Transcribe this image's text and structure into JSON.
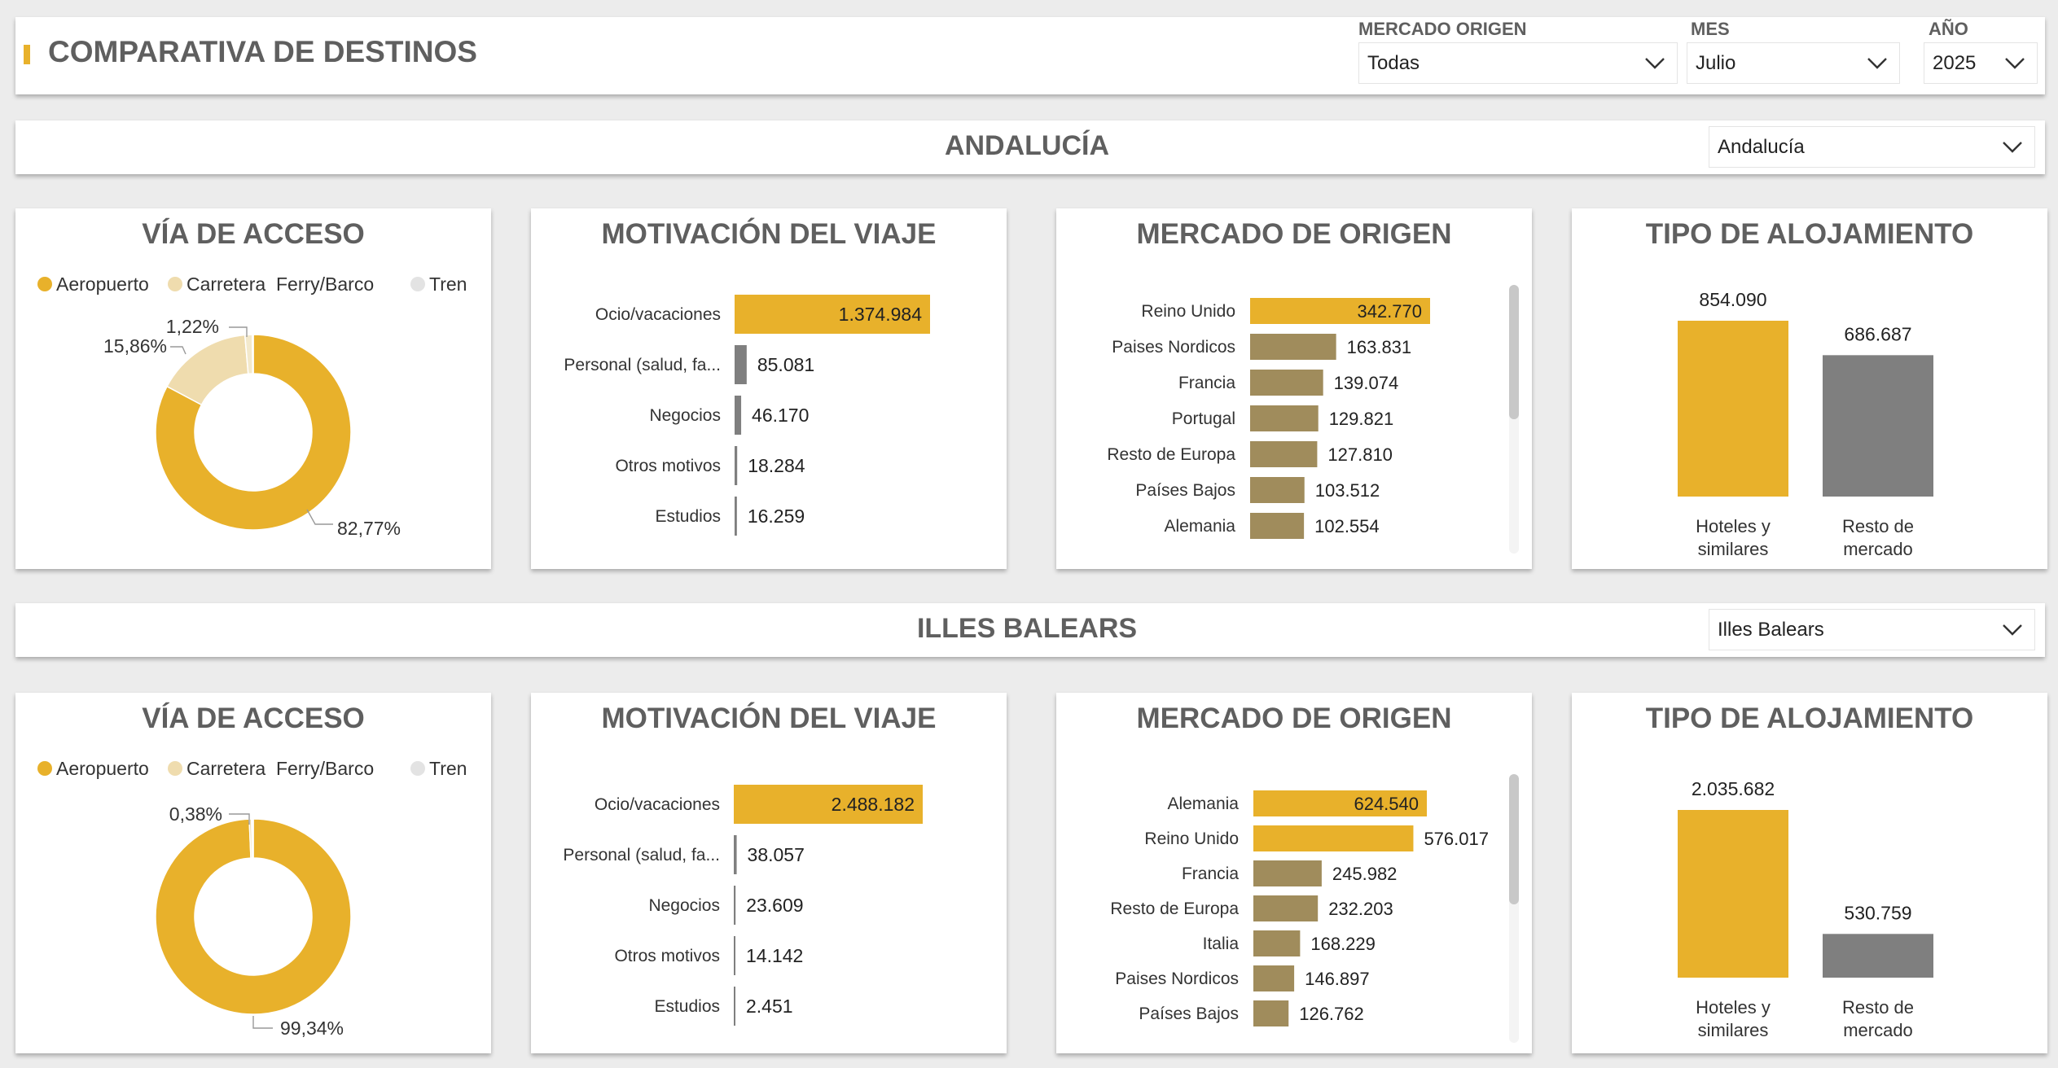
{
  "header": {
    "title": "COMPARATIVA DE DESTINOS",
    "filters": [
      {
        "label": "MERCADO ORIGEN",
        "value": "Todas"
      },
      {
        "label": "MES",
        "value": "Julio"
      },
      {
        "label": "AÑO",
        "value": "2025"
      }
    ]
  },
  "colors": {
    "accent": "#e8b12b",
    "light": "#efdcae",
    "gray": "#7f7f7f",
    "origin": "#a08c5c",
    "scrollbar": "#c8c8c8"
  },
  "sections": [
    {
      "region": "ANDALUCÍA",
      "selector": "Andalucía",
      "cards": {
        "acceso_title": "VÍA DE ACCESO",
        "motivacion_title": "MOTIVACIÓN DEL VIAJE",
        "mercado_title": "MERCADO DE ORIGEN",
        "alojamiento_title": "TIPO DE ALOJAMIENTO"
      }
    },
    {
      "region": "ILLES BALEARS",
      "selector": "Illes Balears",
      "cards": {
        "acceso_title": "VÍA DE ACCESO",
        "motivacion_title": "MOTIVACIÓN DEL VIAJE",
        "mercado_title": "MERCADO DE ORIGEN",
        "alojamiento_title": "TIPO DE ALOJAMIENTO"
      }
    }
  ],
  "chart_data": [
    {
      "type": "pie",
      "variant": "donut",
      "section": "ANDALUCÍA",
      "title": "VÍA DE ACCESO",
      "categories": [
        "Aeropuerto",
        "Carretera",
        "Ferry/Barco",
        "Tren"
      ],
      "values": [
        82.77,
        15.86,
        1.22,
        0.15
      ],
      "labels": [
        "82,77%",
        "15,86%",
        "1,22%",
        ""
      ],
      "legend": "top"
    },
    {
      "type": "bar",
      "orientation": "horizontal",
      "section": "ANDALUCÍA",
      "title": "MOTIVACIÓN DEL VIAJE",
      "categories": [
        "Ocio/vacaciones",
        "Personal (salud, fa...",
        "Negocios",
        "Otros motivos",
        "Estudios"
      ],
      "values": [
        1374984,
        85081,
        46170,
        18284,
        16259
      ],
      "labels": [
        "1.374.984",
        "85.081",
        "46.170",
        "18.284",
        "16.259"
      ]
    },
    {
      "type": "bar",
      "orientation": "horizontal",
      "section": "ANDALUCÍA",
      "title": "MERCADO DE ORIGEN",
      "categories": [
        "Reino Unido",
        "Paises Nordicos",
        "Francia",
        "Portugal",
        "Resto de Europa",
        "Países Bajos",
        "Alemania"
      ],
      "values": [
        342770,
        163831,
        139074,
        129821,
        127810,
        103512,
        102554
      ],
      "labels": [
        "342.770",
        "163.831",
        "139.074",
        "129.821",
        "127.810",
        "103.512",
        "102.554"
      ]
    },
    {
      "type": "bar",
      "orientation": "vertical",
      "section": "ANDALUCÍA",
      "title": "TIPO DE ALOJAMIENTO",
      "categories": [
        "Hoteles y similares",
        "Resto de mercado"
      ],
      "category_lines": [
        [
          "Hoteles y",
          "similares"
        ],
        [
          "Resto de",
          "mercado"
        ]
      ],
      "values": [
        854090,
        686687
      ],
      "labels": [
        "854.090",
        "686.687"
      ]
    },
    {
      "type": "pie",
      "variant": "donut",
      "section": "ILLES BALEARS",
      "title": "VÍA DE ACCESO",
      "categories": [
        "Aeropuerto",
        "Carretera",
        "Ferry/Barco",
        "Tren"
      ],
      "values": [
        99.34,
        0.38,
        0.2,
        0.08
      ],
      "labels": [
        "99,34%",
        "0,38%",
        "",
        ""
      ],
      "legend": "top"
    },
    {
      "type": "bar",
      "orientation": "horizontal",
      "section": "ILLES BALEARS",
      "title": "MOTIVACIÓN DEL VIAJE",
      "categories": [
        "Ocio/vacaciones",
        "Personal (salud, fa...",
        "Negocios",
        "Otros motivos",
        "Estudios"
      ],
      "values": [
        2488182,
        38057,
        23609,
        14142,
        2451
      ],
      "labels": [
        "2.488.182",
        "38.057",
        "23.609",
        "14.142",
        "2.451"
      ]
    },
    {
      "type": "bar",
      "orientation": "horizontal",
      "section": "ILLES BALEARS",
      "title": "MERCADO DE ORIGEN",
      "categories": [
        "Alemania",
        "Reino Unido",
        "Francia",
        "Resto de Europa",
        "Italia",
        "Paises Nordicos",
        "Países Bajos"
      ],
      "values": [
        624540,
        576017,
        245982,
        232203,
        168229,
        146897,
        126762
      ],
      "labels": [
        "624.540",
        "576.017",
        "245.982",
        "232.203",
        "168.229",
        "146.897",
        "126.762"
      ]
    },
    {
      "type": "bar",
      "orientation": "vertical",
      "section": "ILLES BALEARS",
      "title": "TIPO DE ALOJAMIENTO",
      "categories": [
        "Hoteles y similares",
        "Resto de mercado"
      ],
      "category_lines": [
        [
          "Hoteles y",
          "similares"
        ],
        [
          "Resto de",
          "mercado"
        ]
      ],
      "values": [
        2035682,
        530759
      ],
      "labels": [
        "2.035.682",
        "530.759"
      ]
    }
  ]
}
